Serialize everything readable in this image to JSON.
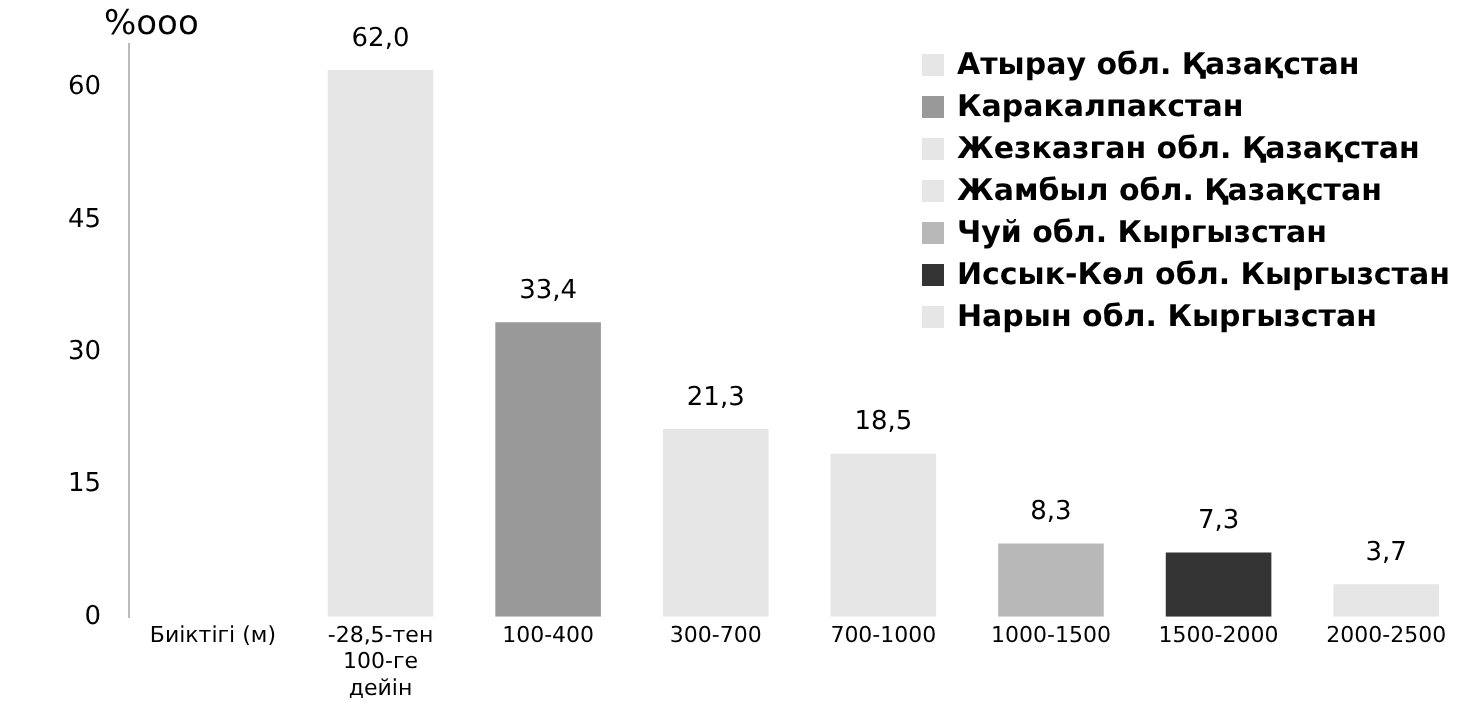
{
  "chart_data": {
    "type": "bar",
    "ylabel": "%ooo",
    "categories": [
      "Биіктігі (м)",
      "-28,5-тен\n100-ге\nдейін",
      "100-400",
      "300-700",
      "700-1000",
      "1000-1500",
      "1500-2000",
      "2000-2500"
    ],
    "series": [
      {
        "name": "Атырау обл. Қазақстан",
        "color": "#e6e6e6",
        "values": [
          null,
          62.0,
          null,
          null,
          null,
          null,
          null,
          null
        ],
        "value_labels": [
          null,
          "62,0",
          null,
          null,
          null,
          null,
          null,
          null
        ]
      },
      {
        "name": "Каракалпакстан",
        "color": "#999999",
        "values": [
          null,
          null,
          33.4,
          null,
          null,
          null,
          null,
          null
        ],
        "value_labels": [
          null,
          null,
          "33,4",
          null,
          null,
          null,
          null,
          null
        ]
      },
      {
        "name": "Жезказган обл. Қазақстан",
        "color": "#e6e6e6",
        "values": [
          null,
          null,
          null,
          21.3,
          null,
          null,
          null,
          null
        ],
        "value_labels": [
          null,
          null,
          null,
          "21,3",
          null,
          null,
          null,
          null
        ]
      },
      {
        "name": "Жамбыл обл. Қазақстан",
        "color": "#e6e6e6",
        "values": [
          null,
          null,
          null,
          null,
          18.5,
          null,
          null,
          null
        ],
        "value_labels": [
          null,
          null,
          null,
          null,
          "18,5",
          null,
          null,
          null
        ]
      },
      {
        "name": "Чуй обл. Кыргызстан",
        "color": "#b8b8b8",
        "values": [
          null,
          null,
          null,
          null,
          null,
          8.3,
          null,
          null
        ],
        "value_labels": [
          null,
          null,
          null,
          null,
          null,
          "8,3",
          null,
          null
        ]
      },
      {
        "name": "Иссык-Көл обл. Кыргызстан",
        "color": "#333333",
        "values": [
          null,
          null,
          null,
          null,
          null,
          null,
          7.3,
          null
        ],
        "value_labels": [
          null,
          null,
          null,
          null,
          null,
          null,
          "7,3",
          null
        ]
      },
      {
        "name": "Нарын обл. Кыргызстан",
        "color": "#e6e6e6",
        "values": [
          null,
          null,
          null,
          null,
          null,
          null,
          null,
          3.7
        ],
        "value_labels": [
          null,
          null,
          null,
          null,
          null,
          null,
          null,
          "3,7"
        ]
      }
    ],
    "ylim": [
      0,
      65
    ],
    "yticks": [
      0,
      15,
      30,
      45,
      60
    ],
    "grid": false,
    "legend": "top right"
  }
}
